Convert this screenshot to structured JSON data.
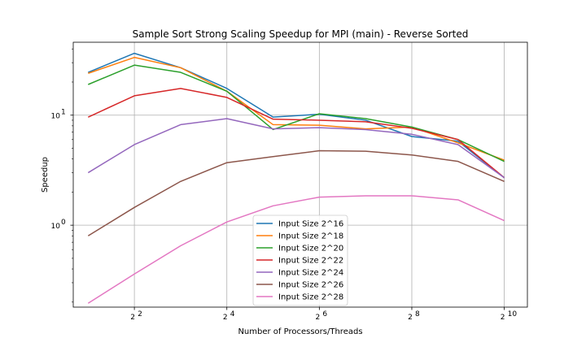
{
  "chart_data": {
    "type": "line",
    "title": "Sample Sort Strong Scaling Speedup for MPI (main) - Reverse Sorted",
    "xlabel": "Number of Processors/Threads",
    "ylabel": "Speedup",
    "x_scale": "log2",
    "y_scale": "log10",
    "grid": true,
    "legend_position": "lower-center",
    "xlim": [
      1.6,
      1448
    ],
    "ylim": [
      0.18,
      46
    ],
    "x_ticks": [
      {
        "value": 4,
        "base": "2",
        "exp": "2"
      },
      {
        "value": 16,
        "base": "2",
        "exp": "4"
      },
      {
        "value": 64,
        "base": "2",
        "exp": "6"
      },
      {
        "value": 256,
        "base": "2",
        "exp": "8"
      },
      {
        "value": 1024,
        "base": "2",
        "exp": "10"
      }
    ],
    "y_ticks": [
      {
        "value": 1,
        "base": "10",
        "exp": "0"
      },
      {
        "value": 10,
        "base": "10",
        "exp": "1"
      }
    ],
    "x": [
      2,
      4,
      8,
      16,
      32,
      64,
      128,
      256,
      512,
      1024
    ],
    "series": [
      {
        "name": "Input Size 2^16",
        "color": "#1f77b4",
        "values": [
          24.5,
          36.5,
          27.0,
          17.5,
          9.6,
          10.2,
          9.0,
          6.4,
          5.8,
          2.7
        ]
      },
      {
        "name": "Input Size 2^18",
        "color": "#ff7f0e",
        "values": [
          24.0,
          33.5,
          27.0,
          16.5,
          8.2,
          8.1,
          7.5,
          7.8,
          5.6,
          3.9
        ]
      },
      {
        "name": "Input Size 2^20",
        "color": "#2ca02c",
        "values": [
          19.0,
          28.5,
          24.5,
          16.5,
          7.4,
          10.3,
          9.3,
          7.8,
          6.0,
          3.8
        ]
      },
      {
        "name": "Input Size 2^22",
        "color": "#d62728",
        "values": [
          9.6,
          15.0,
          17.5,
          14.5,
          9.2,
          9.0,
          8.7,
          7.6,
          6.0,
          2.7
        ]
      },
      {
        "name": "Input Size 2^24",
        "color": "#9467bd",
        "values": [
          3.0,
          5.4,
          8.2,
          9.3,
          7.5,
          7.7,
          7.4,
          6.7,
          5.4,
          2.7
        ]
      },
      {
        "name": "Input Size 2^26",
        "color": "#8c564b",
        "values": [
          0.8,
          1.45,
          2.5,
          3.7,
          4.2,
          4.75,
          4.7,
          4.35,
          3.8,
          2.5
        ]
      },
      {
        "name": "Input Size 2^28",
        "color": "#e377c2",
        "values": [
          0.195,
          0.36,
          0.65,
          1.07,
          1.5,
          1.8,
          1.85,
          1.85,
          1.7,
          1.1
        ]
      }
    ]
  }
}
